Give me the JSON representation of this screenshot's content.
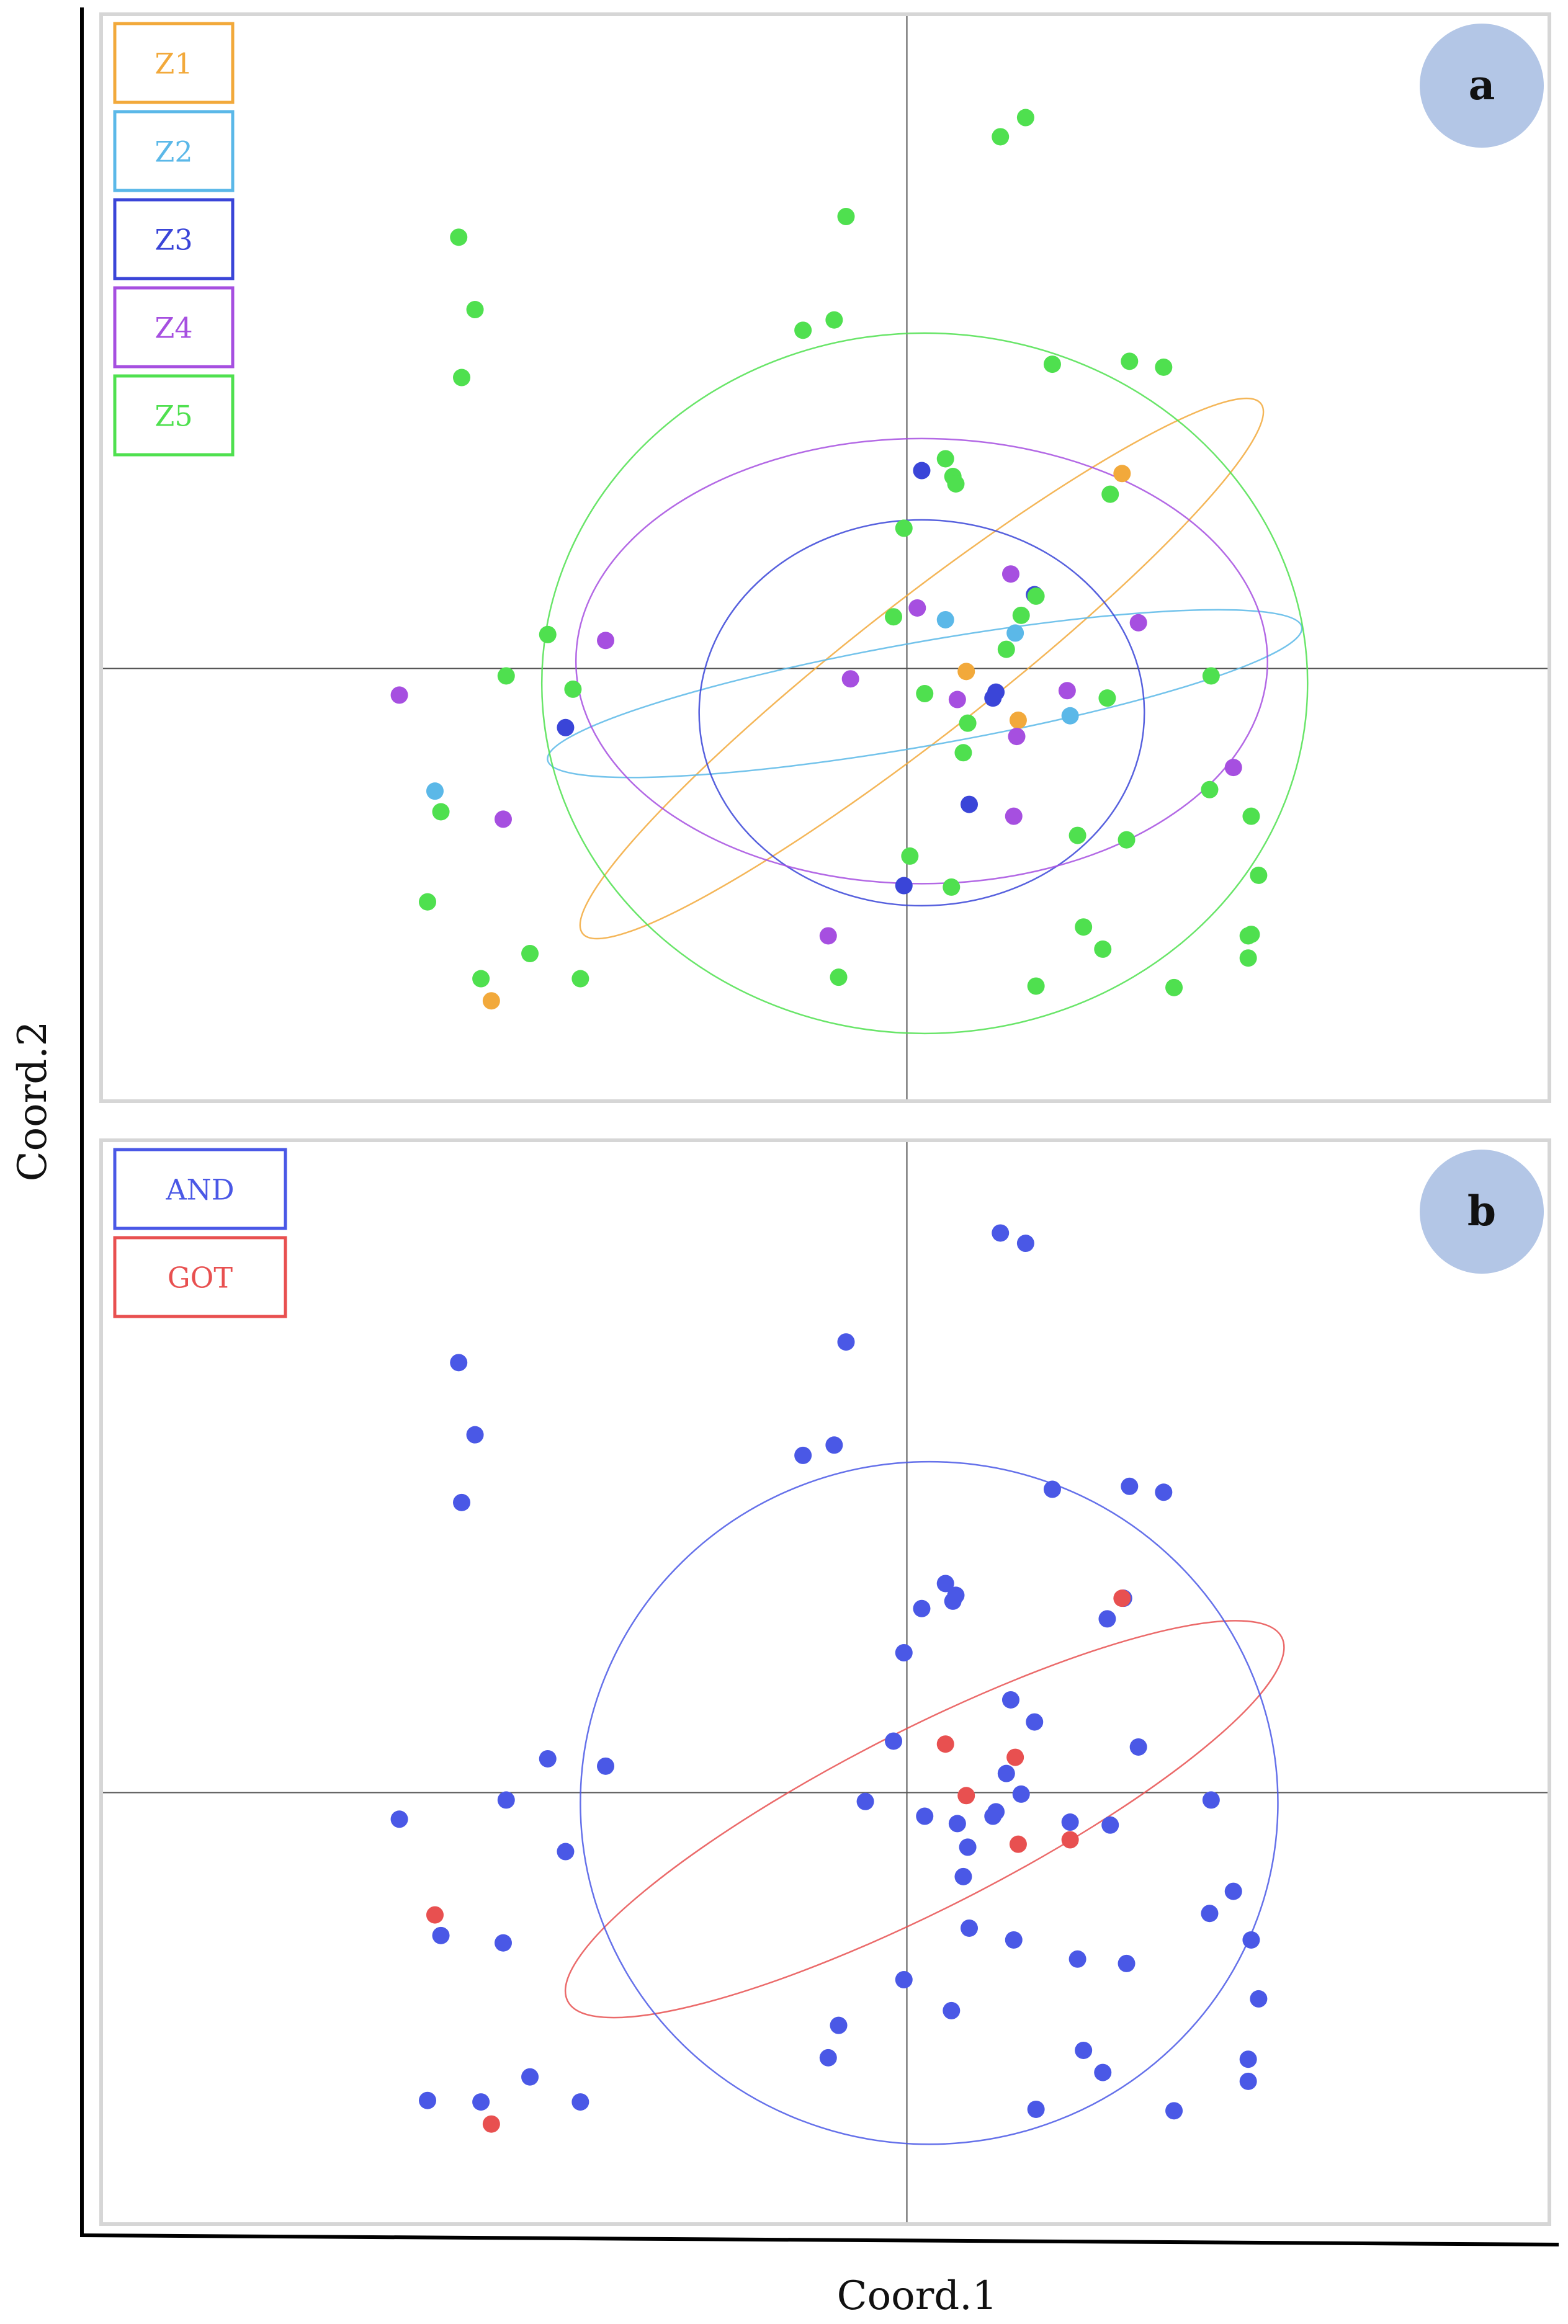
{
  "figure": {
    "xlabel": "Coord.1",
    "ylabel": "Coord.2"
  },
  "colors": {
    "Z1": "#f2a93b",
    "Z2": "#5bb8e8",
    "Z3": "#3a45d8",
    "Z4": "#a64fe0",
    "Z5": "#4fe04f",
    "AND": "#4a58e6",
    "GOT": "#e85050",
    "panel_border": "#d6d6d6",
    "axis_line": "#555555",
    "badge": "#b3c6e6"
  },
  "chart_data": [
    {
      "type": "scatter",
      "panel_label": "a",
      "xlim": [
        -0.54,
        0.43
      ],
      "ylim": [
        -0.29,
        0.44
      ],
      "legend_position": "top-left",
      "legend": [
        "Z1",
        "Z2",
        "Z3",
        "Z4",
        "Z5"
      ],
      "series": [
        {
          "name": "Z1",
          "color": "#f2a93b",
          "x": [
            -0.28,
            0.04,
            0.075,
            0.145
          ],
          "y": [
            -0.225,
            -0.002,
            -0.035,
            0.132
          ],
          "ellipse": {
            "cx": 0.01,
            "cy": 0.0,
            "rx": 0.29,
            "ry": 0.045,
            "angle_deg": 38
          }
        },
        {
          "name": "Z2",
          "color": "#5bb8e8",
          "x": [
            -0.318,
            0.026,
            0.073,
            0.11
          ],
          "y": [
            -0.083,
            0.033,
            0.024,
            -0.032
          ],
          "ellipse": {
            "cx": 0.012,
            "cy": -0.017,
            "rx": 0.258,
            "ry": 0.035,
            "angle_deg": 10
          }
        },
        {
          "name": "Z3",
          "color": "#3a45d8",
          "x": [
            -0.23,
            0.01,
            0.06,
            -0.002,
            0.042,
            0.086,
            0.058
          ],
          "y": [
            -0.04,
            0.134,
            -0.016,
            -0.147,
            -0.092,
            0.05,
            -0.02
          ],
          "ellipse": {
            "cx": 0.01,
            "cy": -0.03,
            "rx": 0.15,
            "ry": 0.13,
            "angle_deg": 0
          }
        },
        {
          "name": "Z4",
          "color": "#a64fe0",
          "x": [
            -0.342,
            -0.272,
            -0.203,
            -0.038,
            0.007,
            0.034,
            0.07,
            0.074,
            0.108,
            0.156,
            0.22,
            -0.053,
            0.072
          ],
          "y": [
            -0.018,
            -0.102,
            0.019,
            -0.007,
            0.041,
            -0.021,
            0.064,
            -0.046,
            -0.015,
            0.031,
            -0.067,
            -0.181,
            -0.1
          ],
          "ellipse": {
            "cx": 0.01,
            "cy": 0.005,
            "rx": 0.233,
            "ry": 0.15,
            "angle_deg": 0
          }
        },
        {
          "name": "Z5",
          "color": "#4fe04f",
          "x": [
            -0.302,
            -0.291,
            -0.3,
            -0.041,
            -0.07,
            -0.049,
            0.098,
            0.15,
            0.173,
            0.026,
            0.031,
            0.033,
            -0.002,
            -0.009,
            0.087,
            0.077,
            0.067,
            0.012,
            0.041,
            0.038,
            -0.242,
            -0.27,
            -0.225,
            0.135,
            0.137,
            0.205,
            0.204,
            0.232,
            0.232,
            0.115,
            0.148,
            -0.314,
            -0.323,
            -0.287,
            -0.254,
            -0.22,
            -0.046,
            0.087,
            0.119,
            0.132,
            0.18,
            0.23,
            0.23,
            0.237,
            0.002,
            0.03,
            0.063,
            0.08
          ],
          "y": [
            0.292,
            0.243,
            0.197,
            0.306,
            0.229,
            0.236,
            0.206,
            0.208,
            0.204,
            0.142,
            0.13,
            0.125,
            0.095,
            0.035,
            0.049,
            0.036,
            0.013,
            -0.017,
            -0.037,
            -0.057,
            0.023,
            -0.005,
            -0.014,
            -0.02,
            0.118,
            -0.005,
            -0.082,
            -0.1,
            -0.18,
            -0.113,
            -0.116,
            -0.097,
            -0.158,
            -0.21,
            -0.193,
            -0.21,
            -0.209,
            -0.215,
            -0.175,
            -0.19,
            -0.216,
            -0.181,
            -0.196,
            -0.14,
            -0.127,
            -0.148,
            0.36,
            0.373
          ],
          "ellipse": {
            "cx": 0.012,
            "cy": -0.01,
            "rx": 0.258,
            "ry": 0.236,
            "angle_deg": 0
          }
        }
      ]
    },
    {
      "type": "scatter",
      "panel_label": "b",
      "xlim": [
        -0.54,
        0.43
      ],
      "ylim": [
        -0.29,
        0.44
      ],
      "legend_position": "top-left",
      "legend": [
        "AND",
        "GOT"
      ],
      "series": [
        {
          "name": "AND",
          "color": "#4a58e6",
          "x": [
            0.063,
            0.08,
            -0.302,
            -0.291,
            -0.3,
            -0.041,
            -0.07,
            -0.049,
            0.098,
            0.15,
            0.173,
            0.026,
            0.031,
            0.033,
            0.01,
            -0.002,
            0.135,
            0.146,
            0.07,
            0.086,
            -0.009,
            -0.242,
            -0.203,
            0.156,
            0.067,
            0.058,
            0.077,
            -0.27,
            -0.342,
            -0.028,
            0.012,
            0.034,
            0.06,
            0.11,
            0.137,
            0.205,
            -0.23,
            0.041,
            0.038,
            0.22,
            0.204,
            0.232,
            -0.314,
            -0.272,
            0.042,
            0.072,
            0.115,
            0.148,
            -0.002,
            0.03,
            0.237,
            -0.323,
            -0.287,
            -0.254,
            -0.22,
            -0.053,
            -0.046,
            0.119,
            0.132,
            0.23,
            0.23,
            0.087,
            0.18
          ],
          "y": [
            0.38,
            0.373,
            0.292,
            0.243,
            0.197,
            0.306,
            0.229,
            0.236,
            0.206,
            0.208,
            0.204,
            0.142,
            0.13,
            0.134,
            0.125,
            0.095,
            0.118,
            0.132,
            0.063,
            0.048,
            0.035,
            0.023,
            0.018,
            0.031,
            0.013,
            -0.016,
            -0.001,
            -0.005,
            -0.018,
            -0.006,
            -0.016,
            -0.021,
            -0.013,
            -0.02,
            -0.022,
            -0.005,
            -0.04,
            -0.037,
            -0.057,
            -0.067,
            -0.082,
            -0.1,
            -0.097,
            -0.102,
            -0.092,
            -0.1,
            -0.113,
            -0.116,
            -0.127,
            -0.148,
            -0.14,
            -0.209,
            -0.21,
            -0.193,
            -0.21,
            -0.18,
            -0.158,
            -0.175,
            -0.19,
            -0.181,
            -0.196,
            -0.215,
            -0.216
          ]
        },
        {
          "name": "GOT",
          "color": "#e85050",
          "x": [
            0.145,
            0.026,
            0.073,
            0.04,
            0.075,
            0.11,
            -0.318,
            -0.28
          ],
          "y": [
            0.132,
            0.033,
            0.024,
            -0.002,
            -0.035,
            -0.032,
            -0.083,
            -0.225
          ],
          "ellipse": {
            "cx": 0.012,
            "cy": -0.018,
            "rx": 0.27,
            "ry": 0.06,
            "angle_deg": 27
          }
        },
        {
          "name": "AND",
          "color": "#4a58e6",
          "ellipse": {
            "cx": 0.015,
            "cy": -0.007,
            "rx": 0.235,
            "ry": 0.23,
            "angle_deg": 0
          },
          "x": [],
          "y": []
        }
      ]
    }
  ]
}
